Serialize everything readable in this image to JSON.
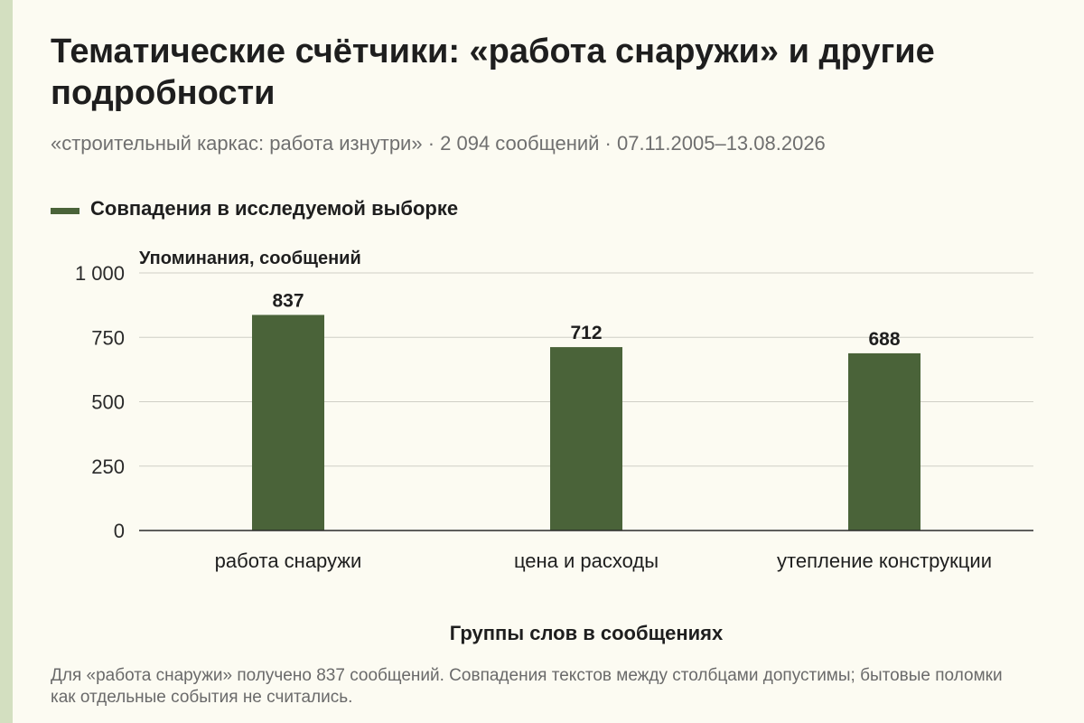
{
  "header": {
    "title": "Тематические счётчики: «работа снаружи» и другие подробности",
    "subtitle": "«строительный каркас: работа изнутри» · 2 094 сообщений · 07.11.2005–13.08.2026"
  },
  "colors": {
    "bar": "#4a6339",
    "grid": "#cfcfc6",
    "axis": "#2a2a2a",
    "side_bar": "#d3dfc0"
  },
  "footnote": "Для «работа снаружи» получено 837 сообщений. Совпадения текстов между столбцами допустимы; бытовые поломки как отдельные события не считались.",
  "chart_data": {
    "type": "bar",
    "title": "Тематические счётчики: «работа снаружи» и другие подробности",
    "categories": [
      "работа снаружи",
      "цена и расходы",
      "утепление конструкции"
    ],
    "series": [
      {
        "name": "Совпадения в исследуемой выборке",
        "values": [
          837,
          712,
          688
        ]
      }
    ],
    "data_labels": [
      "837",
      "712",
      "688"
    ],
    "xlabel": "Группы слов в сообщениях",
    "ylabel": "Упоминания, сообщений",
    "ylim": [
      0,
      1000
    ],
    "yticks": [
      0,
      250,
      500,
      750,
      1000
    ],
    "ytick_labels": [
      "0",
      "250",
      "500",
      "750",
      "1 000"
    ],
    "grid": true,
    "legend_position": "top-left"
  }
}
